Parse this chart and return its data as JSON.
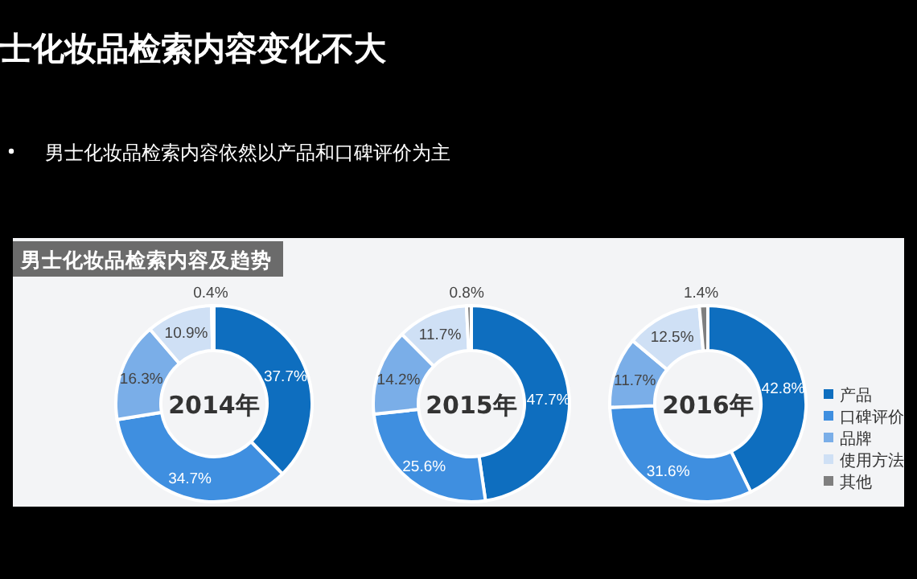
{
  "chart_data": [
    {
      "type": "other",
      "title": "士化妆品检索内容变化不大",
      "annotations": [
        "男士化妆品检索内容依然以产品和口碑评价为主",
        "男士化妆品检索内容及趋势"
      ]
    },
    {
      "type": "donut",
      "title": "2014年",
      "values": [
        37.7,
        34.7,
        16.3,
        10.9,
        0.4
      ],
      "colors": [
        "#0e6ebf",
        "#3f8fe0",
        "#7aaee8",
        "#cfe0f5",
        "#7f7f7f"
      ],
      "value_labels": [
        "37.7%",
        "34.7%",
        "16.3%",
        "10.9%",
        "0.4%"
      ],
      "legend": false
    },
    {
      "type": "donut",
      "title": "2015年",
      "values": [
        47.7,
        25.6,
        14.2,
        11.7,
        0.8
      ],
      "colors": [
        "#0e6ebf",
        "#3f8fe0",
        "#7aaee8",
        "#cfe0f5",
        "#7f7f7f"
      ],
      "value_labels": [
        "47.7%",
        "25.6%",
        "14.2%",
        "11.7%",
        "0.8%"
      ],
      "legend": false
    },
    {
      "type": "donut",
      "title": "2016年",
      "categories": [
        "产品",
        "口碑评价",
        "品牌",
        "使用方法",
        "其他"
      ],
      "values": [
        42.8,
        31.6,
        11.7,
        12.5,
        1.4
      ],
      "colors": [
        "#0e6ebf",
        "#3f8fe0",
        "#7aaee8",
        "#cfe0f5",
        "#7f7f7f"
      ],
      "value_labels": [
        "42.8%",
        "31.6%",
        "11.7%",
        "12.5%",
        "1.4%"
      ],
      "legend": "right"
    }
  ]
}
